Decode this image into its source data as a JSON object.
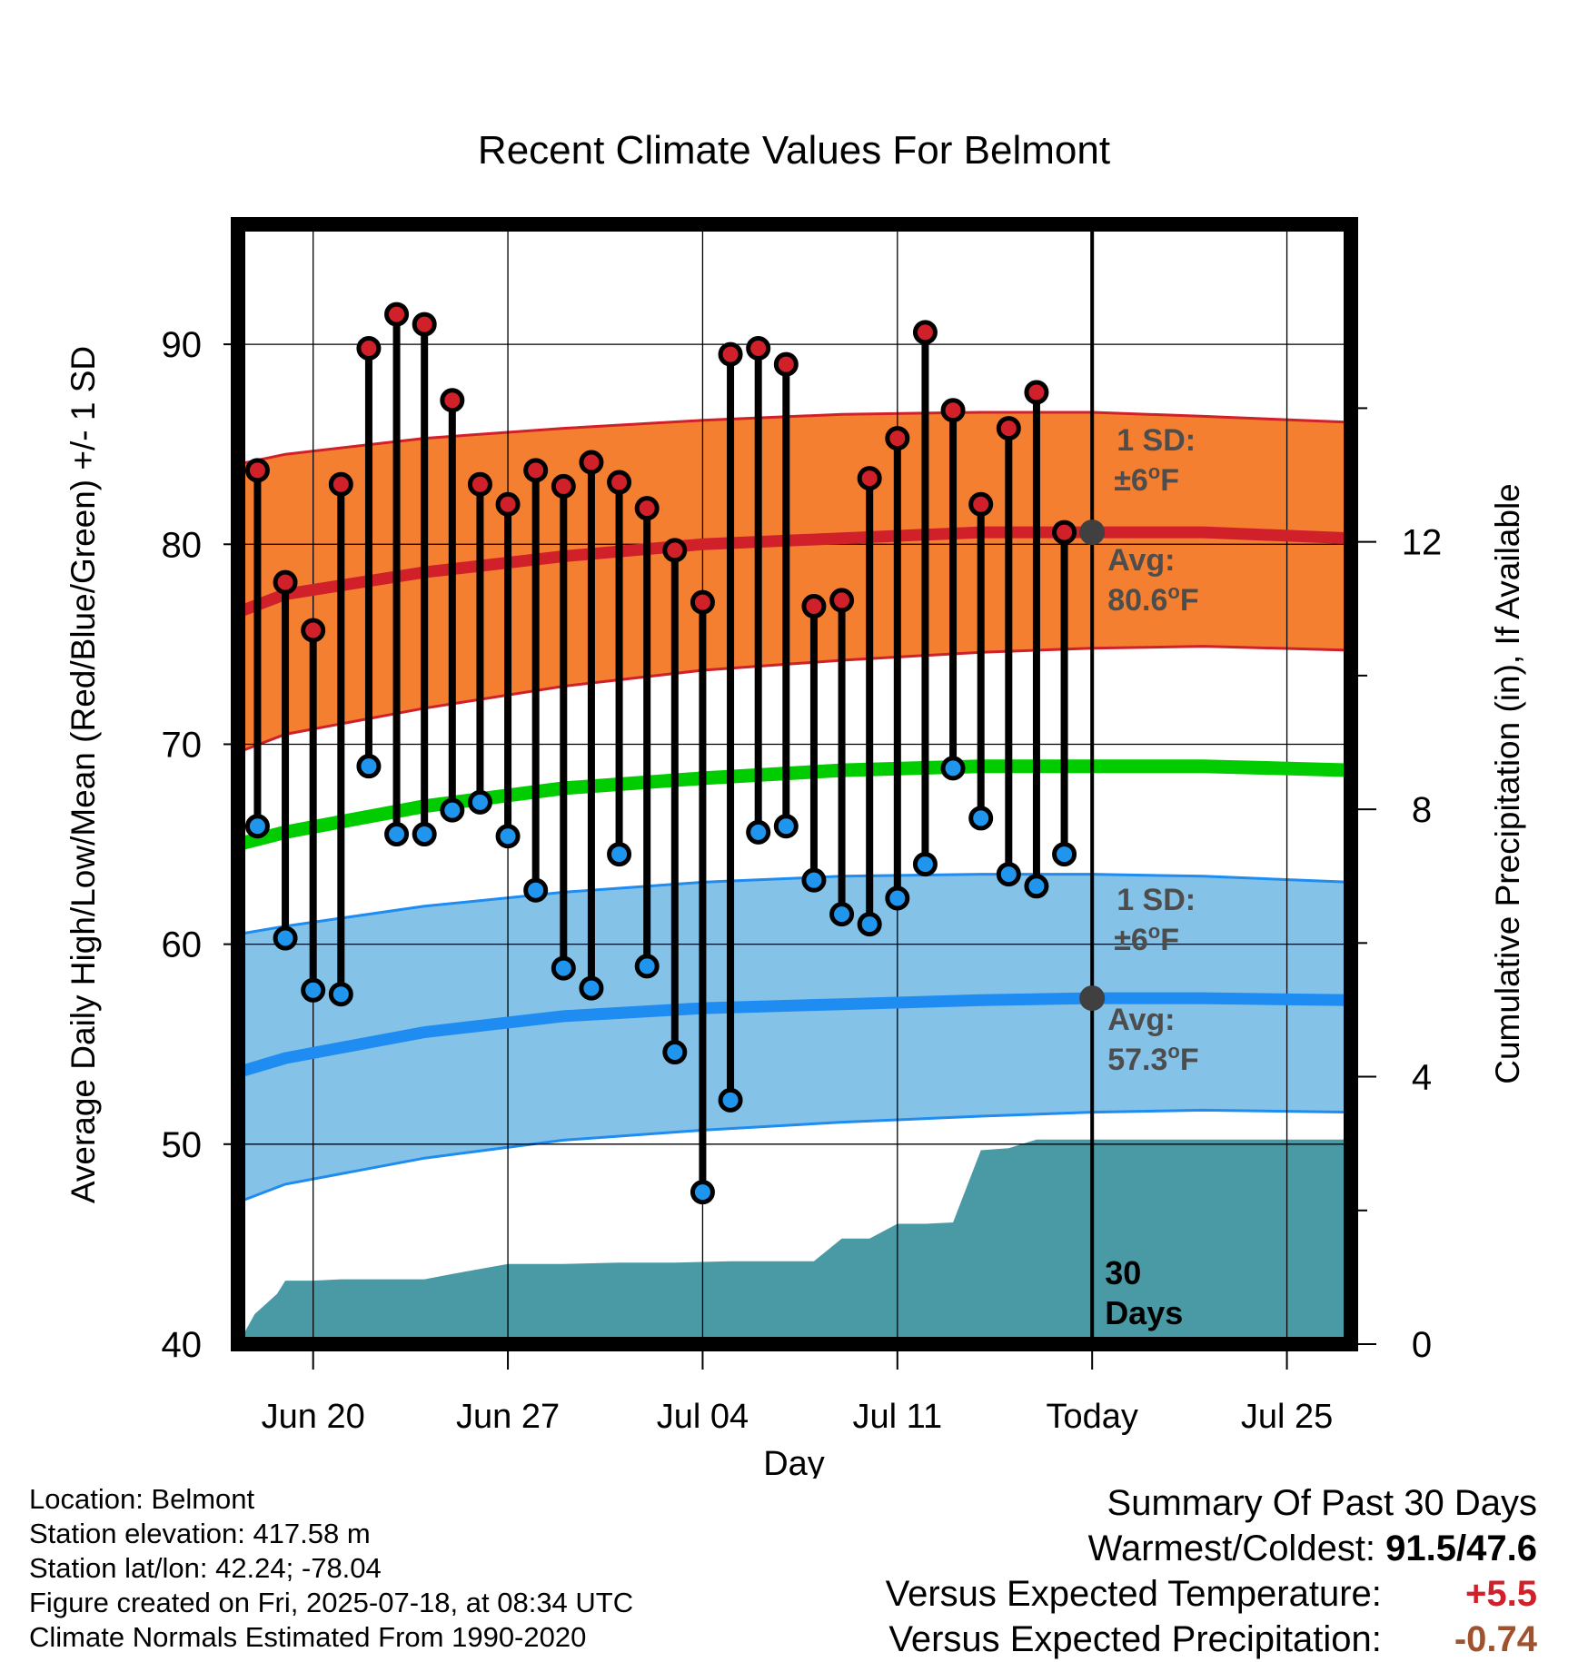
{
  "chart_data": {
    "type": "line",
    "title": "Recent Climate Values For Belmont",
    "xlabel": "Day",
    "ylabel_left": "Average Daily High/Low/Mean (Red/Blue/Green) +/- 1 SD",
    "ylabel_right": "Cumulative Precipitation (in), If Available",
    "ylim_left": [
      40,
      96
    ],
    "ylim_right": [
      0,
      16.75
    ],
    "y_ticks_left": [
      40,
      50,
      60,
      70,
      80,
      90
    ],
    "y_ticks_right": [
      0,
      4,
      8,
      12
    ],
    "x_ticks": [
      {
        "day": 1,
        "label": "Jun 20"
      },
      {
        "day": 8,
        "label": "Jun 27"
      },
      {
        "day": 15,
        "label": "Jul 04"
      },
      {
        "day": 22,
        "label": "Jul 11"
      },
      {
        "day": 29,
        "label": "Today"
      },
      {
        "day": 36,
        "label": "Jul 25"
      }
    ],
    "x_range_days": [
      -1.7,
      38.3
    ],
    "days": [
      -1,
      0,
      1,
      2,
      3,
      4,
      5,
      6,
      7,
      8,
      9,
      10,
      11,
      12,
      13,
      14,
      15,
      16,
      17,
      18,
      19,
      20,
      21,
      22,
      23,
      24,
      25,
      26,
      27,
      28
    ],
    "highs": [
      83.7,
      78.1,
      75.7,
      83,
      89.8,
      91.5,
      91,
      87.2,
      83,
      82,
      83.7,
      82.9,
      84.1,
      83.1,
      81.8,
      79.7,
      77.1,
      89.5,
      89.8,
      89,
      76.9,
      77.2,
      83.3,
      85.3,
      90.6,
      86.7,
      82,
      85.8,
      87.6,
      80.6
    ],
    "lows": [
      65.9,
      60.3,
      57.7,
      57.5,
      68.9,
      65.5,
      65.5,
      66.7,
      67.1,
      65.4,
      62.7,
      58.8,
      57.8,
      64.5,
      58.9,
      54.6,
      47.6,
      52.2,
      65.6,
      65.9,
      63.2,
      61.5,
      61,
      62.3,
      64,
      68.8,
      66.3,
      63.5,
      62.9,
      64.5
    ],
    "normal_high": {
      "days": [
        -1.7,
        0,
        5,
        10,
        15,
        20,
        25,
        29,
        33,
        38.3
      ],
      "mean": [
        76.6,
        77.5,
        78.6,
        79.4,
        80,
        80.3,
        80.6,
        80.6,
        80.6,
        80.3
      ],
      "upper": [
        84,
        84.5,
        85.3,
        85.8,
        86.2,
        86.5,
        86.6,
        86.6,
        86.4,
        86.1
      ],
      "lower": [
        69.6,
        70.5,
        71.8,
        72.9,
        73.7,
        74.2,
        74.6,
        74.8,
        74.9,
        74.7
      ]
    },
    "normal_mean": {
      "days": [
        -1.7,
        0,
        5,
        10,
        15,
        20,
        25,
        29,
        33,
        38.3
      ],
      "values": [
        65,
        65.6,
        66.9,
        67.8,
        68.3,
        68.7,
        68.9,
        68.9,
        68.9,
        68.7
      ]
    },
    "normal_low": {
      "days": [
        -1.7,
        0,
        5,
        10,
        15,
        20,
        25,
        29,
        33,
        38.3
      ],
      "mean": [
        53.6,
        54.3,
        55.6,
        56.4,
        56.8,
        57,
        57.2,
        57.3,
        57.3,
        57.2
      ],
      "upper": [
        60.5,
        60.9,
        61.9,
        62.6,
        63.1,
        63.4,
        63.5,
        63.5,
        63.4,
        63.1
      ],
      "lower": [
        47.1,
        48,
        49.3,
        50.2,
        50.7,
        51.1,
        51.4,
        51.6,
        51.7,
        51.6
      ]
    },
    "precip_cumulative": {
      "days": [
        -1.7,
        -1.1,
        -0.3,
        0,
        1,
        2,
        4,
        5,
        6,
        8,
        10,
        12,
        14,
        16,
        17,
        18,
        19,
        20,
        21,
        22,
        23,
        24,
        25,
        26,
        27,
        28,
        29,
        38.3
      ],
      "values": [
        0,
        0.45,
        0.75,
        0.95,
        0.95,
        0.97,
        0.97,
        0.97,
        1.05,
        1.2,
        1.2,
        1.22,
        1.22,
        1.24,
        1.24,
        1.24,
        1.24,
        1.58,
        1.58,
        1.8,
        1.8,
        1.82,
        2.9,
        2.93,
        3.06,
        3.06,
        3.06,
        3.06
      ]
    },
    "annotations": {
      "high_sd_line1": "1 SD:",
      "high_sd_line2": "±6",
      "high_avg_line1": "Avg:",
      "high_avg_line2": "80.6",
      "low_sd_line1": "1 SD:",
      "low_sd_line2": "±6",
      "low_avg_line1": "Avg:",
      "low_avg_line2": "57.3",
      "unit_degree": "o",
      "unit_f": "F",
      "days_line1": "30",
      "days_line2": "Days"
    },
    "today_marker": {
      "day": 29,
      "high_avg": 80.6,
      "low_avg": 57.3
    },
    "colors": {
      "high_band": "#f47f30",
      "high_line": "#d0202a",
      "mean_line": "#00cc00",
      "low_band": "#85c2e8",
      "low_line": "#1e8cf0",
      "precip": "#4a9aa6",
      "high_marker": "#d0202a",
      "low_marker": "#2095ee",
      "annotation_text": "#4d4d4d",
      "marker_dot": "#404040"
    },
    "legend": "none",
    "grid": true
  },
  "meta": {
    "location": "Location: Belmont",
    "elevation": "Station elevation: 417.58 m",
    "latlon": "Station lat/lon: 42.24; -78.04",
    "created": "Figure created on Fri, 2025-07-18, at 08:34 UTC",
    "normals": "Climate Normals Estimated From 1990-2020"
  },
  "summary": {
    "title": "Summary Of Past 30 Days",
    "warmest_label": "Warmest/Coldest:",
    "warmest_value": "91.5/47.6",
    "temp_label": "Versus Expected Temperature:",
    "temp_value": "+5.5",
    "temp_color": "#d0202a",
    "precip_label": "Versus Expected Precipitation:",
    "precip_value": "-0.74",
    "precip_color": "#a0522d"
  }
}
